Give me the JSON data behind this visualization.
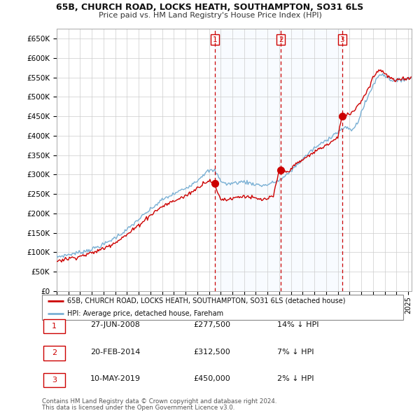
{
  "title": "65B, CHURCH ROAD, LOCKS HEATH, SOUTHAMPTON, SO31 6LS",
  "subtitle": "Price paid vs. HM Land Registry's House Price Index (HPI)",
  "ytick_values": [
    0,
    50000,
    100000,
    150000,
    200000,
    250000,
    300000,
    350000,
    400000,
    450000,
    500000,
    550000,
    600000,
    650000
  ],
  "ylim": [
    0,
    675000
  ],
  "xlim_start": 1995.0,
  "xlim_end": 2025.3,
  "sale_prices": [
    277500,
    312500,
    450000
  ],
  "sale_labels": [
    "1",
    "2",
    "3"
  ],
  "vline_x": [
    2008.49,
    2014.13,
    2019.36
  ],
  "legend_property": "65B, CHURCH ROAD, LOCKS HEATH, SOUTHAMPTON, SO31 6LS (detached house)",
  "legend_hpi": "HPI: Average price, detached house, Fareham",
  "table_entries": [
    {
      "num": "1",
      "date": "27-JUN-2008",
      "price": "£277,500",
      "hpi": "14% ↓ HPI"
    },
    {
      "num": "2",
      "date": "20-FEB-2014",
      "price": "£312,500",
      "hpi": "7% ↓ HPI"
    },
    {
      "num": "3",
      "date": "10-MAY-2019",
      "price": "£450,000",
      "hpi": "2% ↓ HPI"
    }
  ],
  "footer1": "Contains HM Land Registry data © Crown copyright and database right 2024.",
  "footer2": "This data is licensed under the Open Government Licence v3.0.",
  "property_line_color": "#cc0000",
  "hpi_line_color": "#7ab0d4",
  "vline_color": "#cc0000",
  "fill_color": "#ddeeff",
  "background_color": "#ffffff",
  "grid_color": "#cccccc",
  "hpi_anchors_t": [
    1995.0,
    1996.0,
    1997.0,
    1998.0,
    1999.0,
    2000.0,
    2001.0,
    2002.0,
    2003.0,
    2004.0,
    2005.0,
    2005.5,
    2006.0,
    2007.0,
    2007.5,
    2008.0,
    2008.5,
    2009.0,
    2009.5,
    2010.0,
    2010.5,
    2011.0,
    2011.5,
    2012.0,
    2012.5,
    2013.0,
    2013.5,
    2014.0,
    2014.5,
    2015.0,
    2015.5,
    2016.0,
    2016.5,
    2017.0,
    2017.5,
    2018.0,
    2018.5,
    2019.0,
    2019.3,
    2019.5,
    2020.0,
    2020.3,
    2020.7,
    2021.0,
    2021.5,
    2022.0,
    2022.5,
    2022.8,
    2023.0,
    2023.5,
    2024.0,
    2024.5,
    2025.0
  ],
  "hpi_anchors_v": [
    88000,
    94000,
    100000,
    108000,
    120000,
    138000,
    158000,
    185000,
    210000,
    235000,
    250000,
    258000,
    265000,
    285000,
    300000,
    310000,
    310000,
    285000,
    275000,
    278000,
    280000,
    282000,
    278000,
    275000,
    272000,
    274000,
    280000,
    285000,
    295000,
    310000,
    325000,
    340000,
    355000,
    368000,
    378000,
    388000,
    400000,
    410000,
    415000,
    420000,
    418000,
    415000,
    435000,
    460000,
    495000,
    530000,
    555000,
    560000,
    555000,
    545000,
    540000,
    545000,
    548000
  ],
  "prop_anchors_t": [
    1995.0,
    1996.0,
    1997.0,
    1998.0,
    1999.0,
    2000.0,
    2001.0,
    2002.0,
    2003.0,
    2004.0,
    2005.0,
    2006.0,
    2007.0,
    2007.5,
    2008.0,
    2008.49,
    2008.7,
    2009.0,
    2009.5,
    2010.0,
    2010.5,
    2011.0,
    2011.5,
    2012.0,
    2012.5,
    2013.0,
    2013.5,
    2014.0,
    2014.13,
    2014.5,
    2015.0,
    2015.5,
    2016.0,
    2016.5,
    2017.0,
    2017.5,
    2018.0,
    2018.5,
    2019.0,
    2019.36,
    2019.8,
    2020.0,
    2020.5,
    2021.0,
    2021.5,
    2022.0,
    2022.5,
    2022.8,
    2023.0,
    2023.5,
    2024.0,
    2024.5,
    2025.0
  ],
  "prop_anchors_v": [
    78000,
    84000,
    90000,
    98000,
    110000,
    126000,
    145000,
    170000,
    196000,
    218000,
    232000,
    245000,
    265000,
    278000,
    285000,
    277500,
    255000,
    238000,
    235000,
    240000,
    242000,
    245000,
    242000,
    238000,
    235000,
    238000,
    244000,
    310000,
    312500,
    305000,
    315000,
    328000,
    338000,
    348000,
    358000,
    368000,
    375000,
    385000,
    395000,
    450000,
    455000,
    455000,
    470000,
    490000,
    515000,
    550000,
    570000,
    568000,
    560000,
    548000,
    540000,
    548000,
    548000
  ]
}
